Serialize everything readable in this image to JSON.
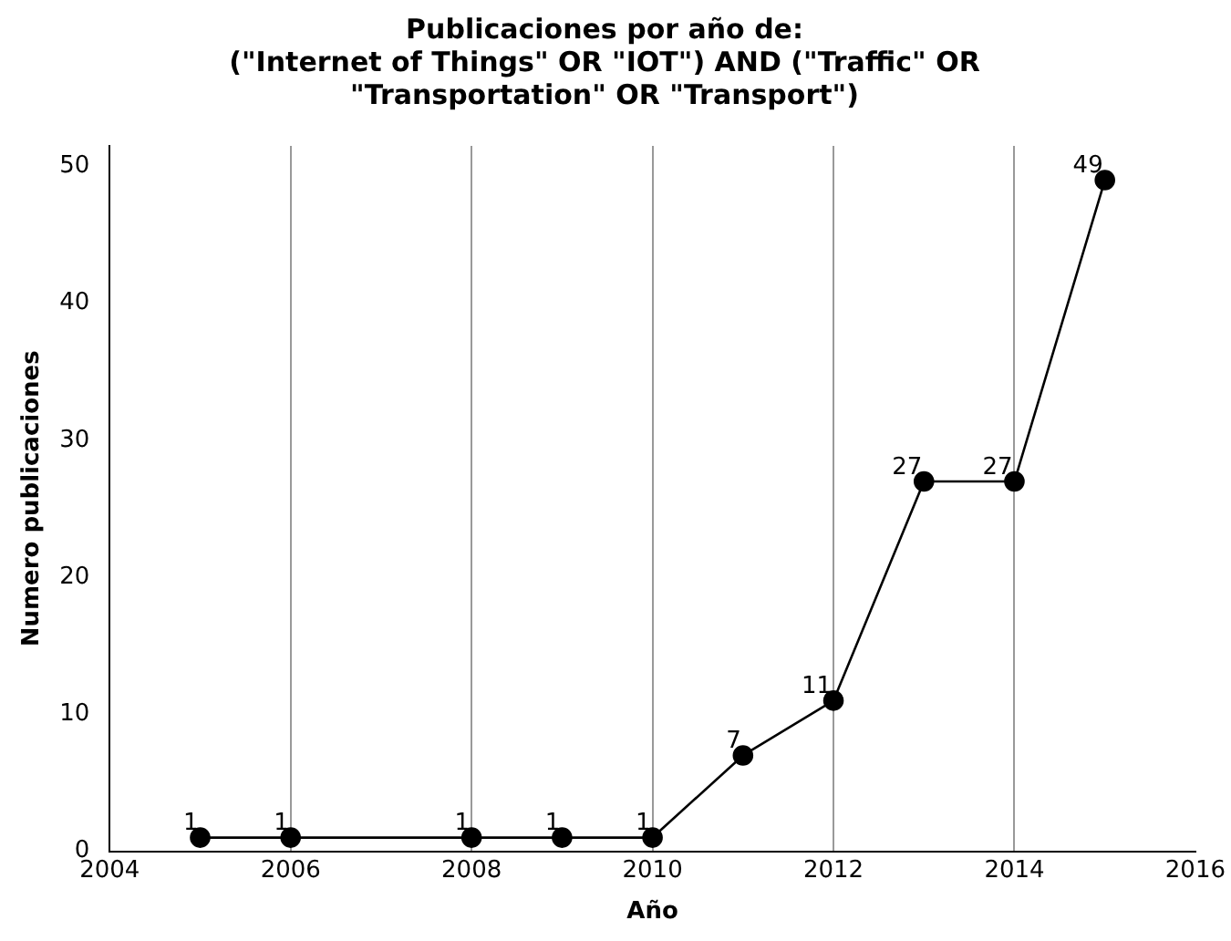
{
  "chart_data": {
    "type": "line",
    "title": "Publicaciones por año de:\n(\"Internet of Things\" OR \"IOT\") AND (\"Traffic\" OR\n\"Transportation\" OR \"Transport\")",
    "xlabel": "Año",
    "ylabel": "Numero publicaciones",
    "x": [
      2005,
      2006,
      2008,
      2009,
      2010,
      2011,
      2012,
      2013,
      2014,
      2015
    ],
    "series": [
      {
        "color": "#000000",
        "values": [
          1,
          1,
          1,
          1,
          1,
          7,
          11,
          27,
          27,
          49
        ]
      }
    ],
    "xlim": [
      2004,
      2016
    ],
    "xticks": [
      2004,
      2006,
      2008,
      2010,
      2012,
      2014,
      2016
    ],
    "ylim": [
      0,
      51.5
    ],
    "yticks": [
      0,
      10,
      20,
      30,
      40,
      50
    ],
    "grid": "x",
    "legend": false,
    "marker": "circle",
    "line_style": "solid",
    "data_labels": true
  }
}
